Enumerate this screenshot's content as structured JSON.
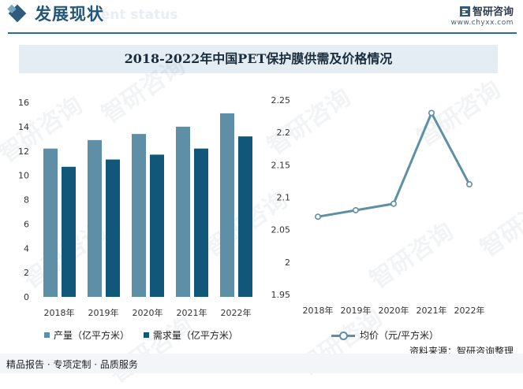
{
  "header": {
    "title": "发展现状",
    "title_ghost": "ment status",
    "brand_name": "智研咨询",
    "brand_url": "www.chyxx.com"
  },
  "watermark_text": "智研咨询",
  "chart_data": [
    {
      "type": "bar",
      "title": "2018-2022年中国PET保护膜供需及价格情况",
      "categories": [
        "2018年",
        "2019年",
        "2020年",
        "2021年",
        "2022年"
      ],
      "series": [
        {
          "name": "产量（亿平方米）",
          "values": [
            12.2,
            12.9,
            13.4,
            14.0,
            15.1
          ],
          "color": "#5e8fa6"
        },
        {
          "name": "需求量（亿平方米）",
          "values": [
            10.7,
            11.3,
            11.7,
            12.2,
            13.2
          ],
          "color": "#10577a"
        }
      ],
      "ylim": [
        0,
        16
      ],
      "yticks": [
        "0",
        "2",
        "4",
        "6",
        "8",
        "10",
        "12",
        "14",
        "16"
      ],
      "xlabel": "",
      "ylabel": ""
    },
    {
      "type": "line",
      "categories": [
        "2018年",
        "2019年",
        "2020年",
        "2021年",
        "2022年"
      ],
      "series": [
        {
          "name": "均价（元/平方米）",
          "values": [
            2.07,
            2.08,
            2.09,
            2.23,
            2.12
          ],
          "color": "#5e8fa6"
        }
      ],
      "ylim": [
        1.95,
        2.25
      ],
      "yticks": [
        "1.95",
        "2",
        "2.05",
        "2.1",
        "2.15",
        "2.2",
        "2.25"
      ],
      "xlabel": "",
      "ylabel": ""
    }
  ],
  "footer": {
    "left": "精品报告 · 专项定制 · 品质服务",
    "source": "资料来源：智研咨询整理"
  }
}
